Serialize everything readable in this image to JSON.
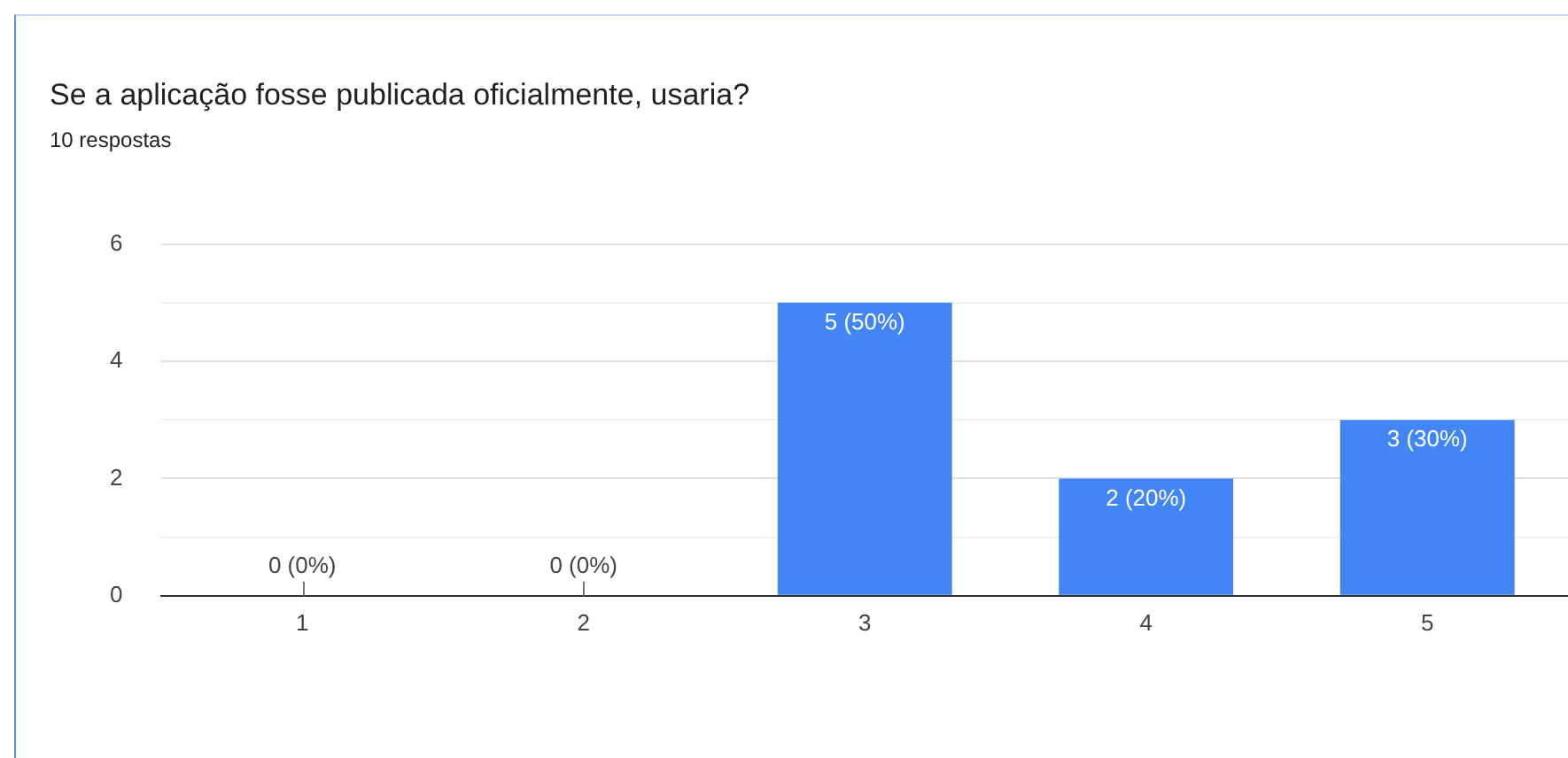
{
  "chart_data": {
    "type": "bar",
    "title": "Se a aplicação fosse publicada oficialmente, usaria?",
    "subtitle": "10 respostas",
    "categories": [
      "1",
      "2",
      "3",
      "4",
      "5"
    ],
    "values": [
      0,
      0,
      5,
      2,
      3
    ],
    "value_labels": [
      "0 (0%)",
      "0 (0%)",
      "5 (50%)",
      "2 (20%)",
      "3 (30%)"
    ],
    "color": "#4285f4",
    "ylim": [
      0,
      6
    ],
    "yticks": [
      0,
      {
        "value": 1,
        "label": null
      },
      2,
      {
        "value": 3,
        "label": null
      },
      4,
      {
        "value": 5,
        "label": null
      },
      6
    ],
    "grid": "y",
    "legend": false
  }
}
